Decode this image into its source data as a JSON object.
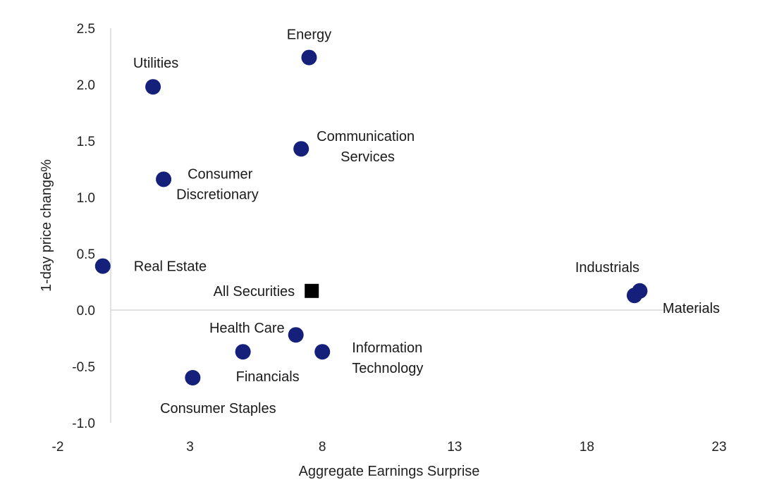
{
  "chart_data": {
    "type": "scatter",
    "xlabel": "Aggregate Earnings Surprise",
    "ylabel": "1-day price change%",
    "xlim": [
      -2,
      23
    ],
    "ylim": [
      -1.0,
      2.5
    ],
    "x_ticks": [
      "-2",
      "3",
      "8",
      "13",
      "18",
      "23"
    ],
    "y_ticks": [
      "2.5",
      "2.0",
      "1.5",
      "1.0",
      "0.5",
      "0.0",
      "-0.5",
      "-1.0"
    ],
    "grid": false,
    "marker_color": "#14207a",
    "highlight_color": "#000000",
    "points": [
      {
        "label": [
          "Energy"
        ],
        "x": 7.5,
        "y": 2.24,
        "marker": "circle"
      },
      {
        "label": [
          "Utilities"
        ],
        "x": 1.6,
        "y": 1.98,
        "marker": "circle"
      },
      {
        "label": [
          "Communication",
          "Services"
        ],
        "x": 7.2,
        "y": 1.43,
        "marker": "circle"
      },
      {
        "label": [
          "Consumer",
          "Discretionary"
        ],
        "x": 2.0,
        "y": 1.16,
        "marker": "circle"
      },
      {
        "label": [
          "Real Estate"
        ],
        "x": -0.3,
        "y": 0.39,
        "marker": "circle"
      },
      {
        "label": [
          "All Securities"
        ],
        "x": 7.6,
        "y": 0.17,
        "marker": "square"
      },
      {
        "label": [
          "Industrials"
        ],
        "x": 20.0,
        "y": 0.17,
        "marker": "circle"
      },
      {
        "label": [
          "Materials"
        ],
        "x": 19.8,
        "y": 0.13,
        "marker": "circle"
      },
      {
        "label": [
          "Health Care"
        ],
        "x": 7.0,
        "y": -0.22,
        "marker": "circle"
      },
      {
        "label": [
          "Financials"
        ],
        "x": 5.0,
        "y": -0.37,
        "marker": "circle"
      },
      {
        "label": [
          "Information",
          "Technology"
        ],
        "x": 8.0,
        "y": -0.37,
        "marker": "circle"
      },
      {
        "label": [
          "Consumer Staples"
        ],
        "x": 3.1,
        "y": -0.6,
        "marker": "circle"
      }
    ]
  }
}
